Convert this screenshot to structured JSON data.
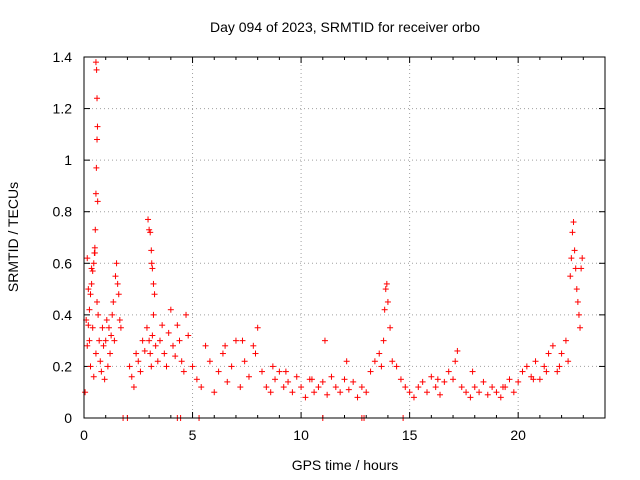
{
  "chart_data": {
    "type": "scatter",
    "title": "Day 094 of 2023, SRMTID for receiver orbo",
    "xlabel": "GPS time / hours",
    "ylabel": "SRMTID / TECUs",
    "xlim": [
      0,
      24
    ],
    "ylim": [
      0,
      1.4
    ],
    "x_ticks": [
      0,
      5,
      10,
      15,
      20
    ],
    "y_ticks": [
      0,
      0.2,
      0.4,
      0.6,
      0.8,
      1,
      1.2,
      1.4
    ],
    "x_tick_labels": [
      "0",
      "5",
      "10",
      "15",
      "20"
    ],
    "y_tick_labels": [
      "0",
      "0.2",
      "0.4",
      "0.6",
      "0.8",
      "1",
      "1.2",
      "1.4"
    ],
    "grid": true,
    "marker": "plus",
    "color": "#ff0000",
    "series": [
      {
        "name": "SRMTID",
        "x": [
          0.05,
          0.1,
          0.15,
          0.2,
          0.25,
          0.3,
          0.35,
          0.4,
          0.45,
          0.5,
          0.55,
          0.6,
          0.65,
          0.7,
          0.75,
          0.8,
          0.85,
          0.9,
          0.95,
          1.0,
          1.05,
          1.1,
          1.15,
          1.2,
          1.25,
          1.3,
          1.35,
          1.4,
          1.45,
          1.5,
          1.55,
          1.6,
          1.65,
          1.7,
          0.55,
          0.58,
          0.6,
          0.62,
          0.6,
          0.57,
          0.55,
          0.63,
          0.52,
          0.5,
          0.48,
          0.45,
          0.4,
          0.35,
          0.3,
          0.25,
          0.2,
          0.15,
          2.1,
          2.2,
          2.3,
          2.4,
          2.5,
          2.6,
          2.7,
          2.8,
          2.9,
          3.0,
          3.05,
          3.1,
          3.15,
          3.2,
          3.3,
          3.4,
          3.5,
          3.6,
          3.7,
          3.8,
          3.9,
          4.0,
          4.1,
          4.2,
          4.3,
          4.4,
          4.5,
          4.6,
          4.7,
          4.8,
          2.95,
          3.0,
          3.05,
          3.1,
          3.12,
          3.15,
          3.2,
          3.25,
          5.0,
          5.2,
          5.4,
          5.6,
          5.8,
          6.0,
          6.2,
          6.4,
          6.6,
          6.8,
          7.0,
          7.2,
          7.4,
          7.6,
          7.8,
          8.0,
          8.2,
          8.4,
          8.6,
          8.8,
          9.0,
          9.2,
          9.4,
          9.6,
          9.8,
          10.0,
          10.2,
          10.4,
          10.6,
          10.8,
          11.0,
          11.2,
          11.4,
          11.6,
          11.8,
          12.0,
          12.2,
          12.4,
          12.6,
          12.8,
          13.0,
          13.2,
          13.4,
          13.6,
          13.8,
          13.85,
          13.9,
          13.95,
          14.0,
          14.1,
          14.2,
          14.4,
          14.6,
          14.8,
          15.0,
          15.2,
          15.4,
          15.6,
          15.8,
          16.0,
          16.2,
          16.4,
          16.6,
          16.8,
          17.0,
          17.2,
          17.4,
          17.6,
          17.8,
          18.0,
          18.2,
          18.4,
          18.6,
          18.8,
          19.0,
          19.2,
          19.4,
          19.6,
          19.8,
          20.0,
          20.2,
          20.4,
          20.6,
          20.8,
          21.0,
          21.2,
          21.4,
          21.6,
          21.8,
          22.0,
          22.2,
          22.3,
          22.4,
          22.45,
          22.5,
          22.55,
          22.6,
          22.65,
          22.7,
          22.75,
          22.8,
          22.85,
          22.9,
          22.95,
          6.5,
          7.3,
          7.9,
          8.7,
          9.3,
          10.5,
          11.1,
          12.1,
          13.7,
          16.3,
          17.1,
          17.9,
          19.3,
          20.7,
          21.3,
          21.9,
          1.8,
          2.0,
          4.3,
          4.45,
          5.3,
          11.0,
          12.8,
          12.9,
          14.7
        ],
        "y": [
          0.1,
          0.38,
          0.62,
          0.5,
          0.3,
          0.2,
          0.58,
          0.35,
          0.16,
          0.64,
          0.25,
          0.45,
          0.4,
          0.3,
          0.22,
          0.18,
          0.35,
          0.28,
          0.15,
          0.3,
          0.38,
          0.2,
          0.35,
          0.25,
          0.32,
          0.4,
          0.45,
          0.3,
          0.55,
          0.6,
          0.52,
          0.48,
          0.38,
          0.35,
          1.38,
          1.35,
          1.24,
          1.13,
          1.08,
          0.97,
          0.87,
          0.84,
          0.73,
          0.66,
          0.64,
          0.6,
          0.57,
          0.52,
          0.48,
          0.42,
          0.36,
          0.28,
          0.2,
          0.16,
          0.12,
          0.25,
          0.22,
          0.18,
          0.3,
          0.26,
          0.35,
          0.3,
          0.25,
          0.2,
          0.32,
          0.4,
          0.28,
          0.22,
          0.3,
          0.36,
          0.25,
          0.2,
          0.33,
          0.42,
          0.28,
          0.24,
          0.36,
          0.3,
          0.22,
          0.18,
          0.4,
          0.32,
          0.77,
          0.73,
          0.72,
          0.65,
          0.6,
          0.58,
          0.52,
          0.48,
          0.2,
          0.15,
          0.12,
          0.28,
          0.22,
          0.1,
          0.18,
          0.25,
          0.14,
          0.2,
          0.3,
          0.12,
          0.22,
          0.16,
          0.28,
          0.35,
          0.18,
          0.12,
          0.1,
          0.15,
          0.18,
          0.12,
          0.14,
          0.1,
          0.16,
          0.12,
          0.08,
          0.15,
          0.1,
          0.12,
          0.14,
          0.09,
          0.16,
          0.12,
          0.1,
          0.15,
          0.11,
          0.14,
          0.08,
          0.12,
          0.1,
          0.18,
          0.22,
          0.25,
          0.3,
          0.42,
          0.5,
          0.52,
          0.45,
          0.35,
          0.22,
          0.2,
          0.15,
          0.12,
          0.1,
          0.08,
          0.12,
          0.14,
          0.1,
          0.16,
          0.12,
          0.09,
          0.14,
          0.18,
          0.15,
          0.26,
          0.12,
          0.1,
          0.08,
          0.12,
          0.1,
          0.14,
          0.09,
          0.12,
          0.1,
          0.08,
          0.12,
          0.15,
          0.1,
          0.14,
          0.18,
          0.2,
          0.16,
          0.22,
          0.15,
          0.2,
          0.25,
          0.28,
          0.18,
          0.25,
          0.3,
          0.22,
          0.55,
          0.62,
          0.72,
          0.76,
          0.65,
          0.58,
          0.5,
          0.45,
          0.4,
          0.35,
          0.58,
          0.62,
          0.28,
          0.3,
          0.25,
          0.2,
          0.18,
          0.15,
          0.3,
          0.22,
          0.2,
          0.15,
          0.22,
          0.18,
          0.12,
          0.15,
          0.18,
          0.2,
          0,
          0,
          0,
          0,
          0,
          0,
          0,
          0,
          0
        ]
      }
    ]
  }
}
